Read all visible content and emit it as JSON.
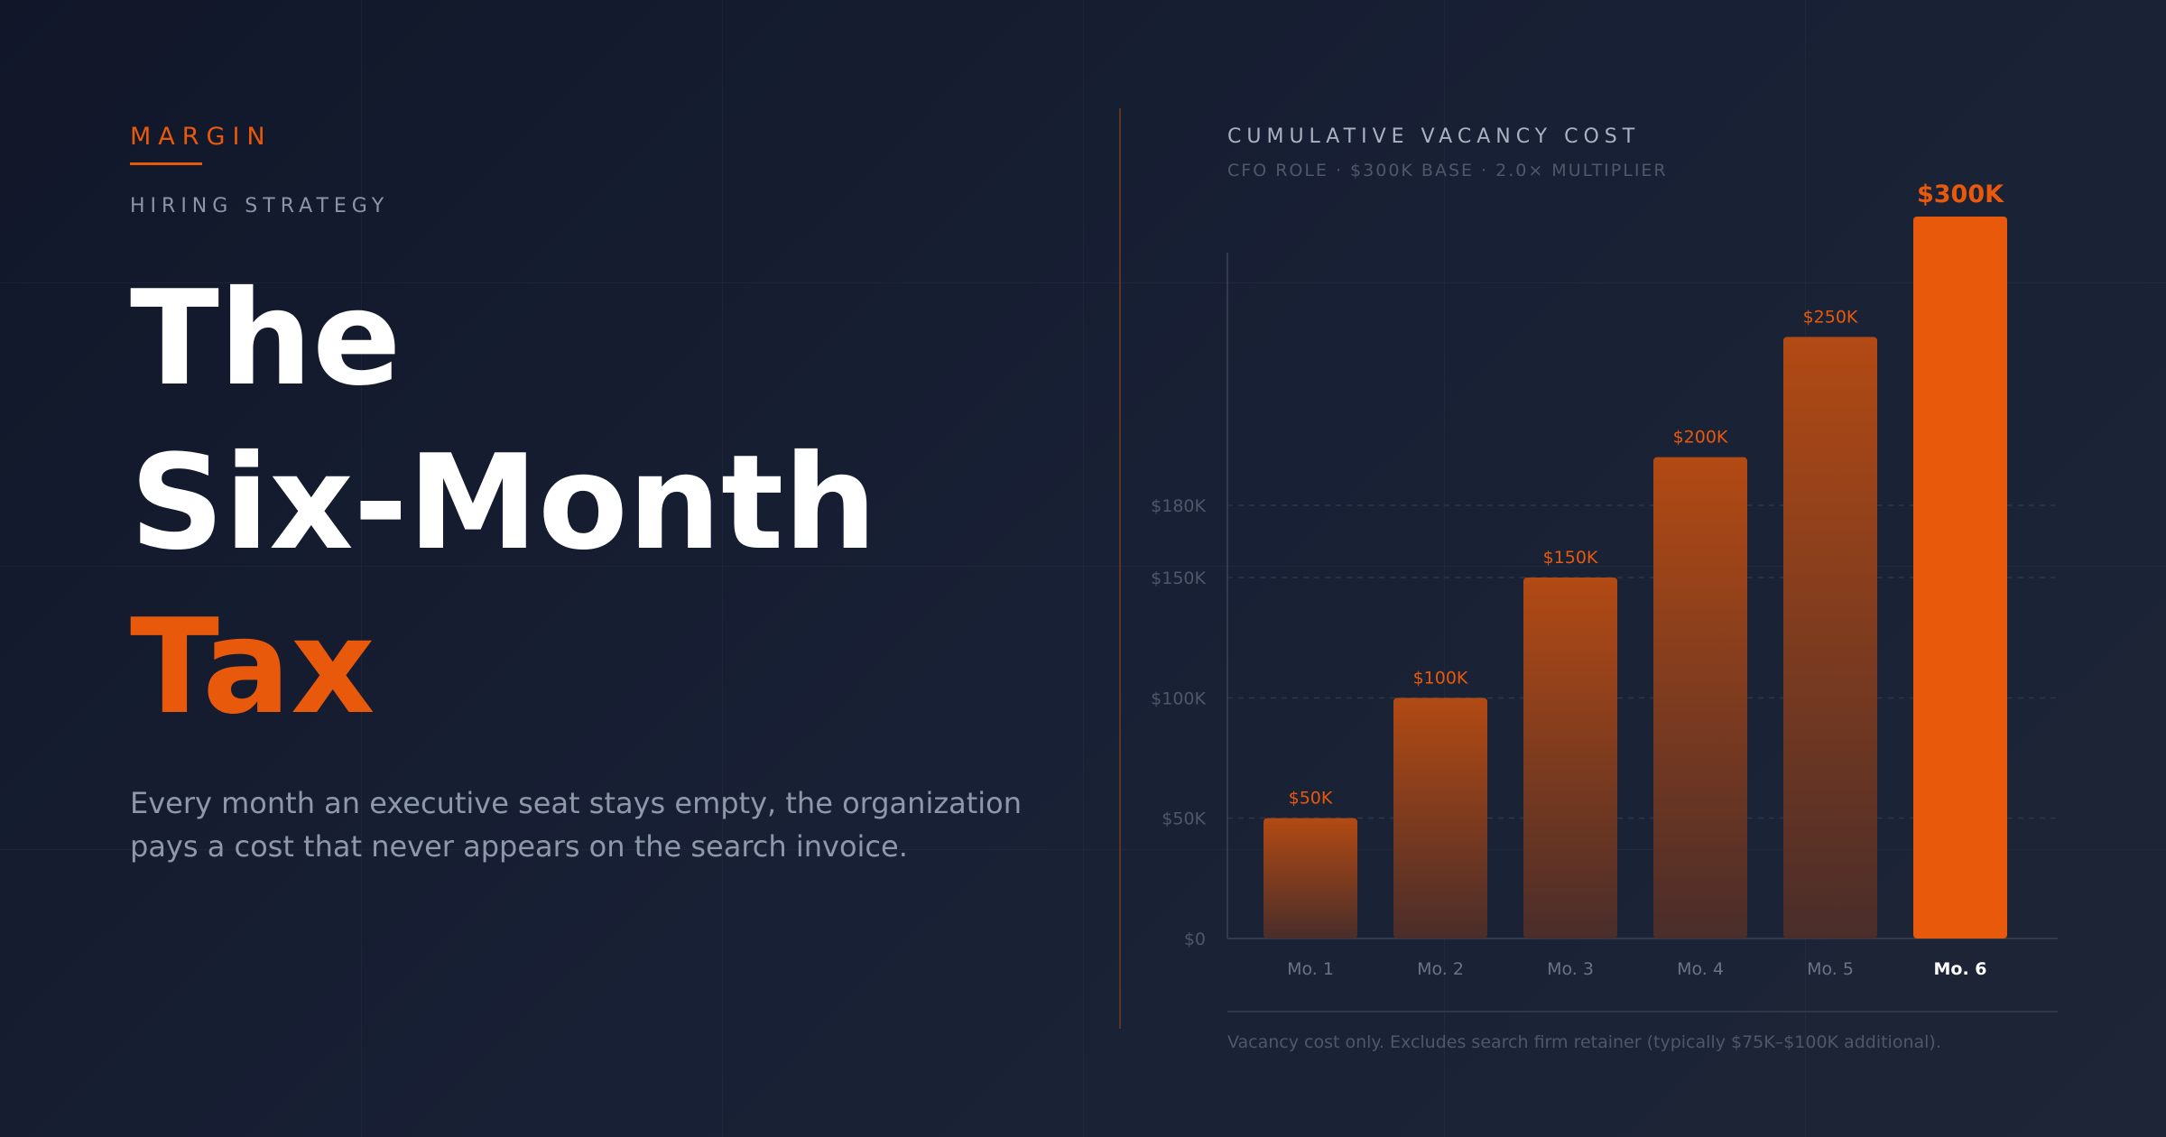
{
  "brand": "MARGIN",
  "eyebrow": "HIRING STRATEGY",
  "title": {
    "line1": "The",
    "line2": "Six-Month",
    "line3": "Tax"
  },
  "lede": "Every month an executive seat stays empty, the organization pays a cost that never appears on the search invoice.",
  "colors": {
    "accent": "#e8590c",
    "bar_dim": "#8a3f19",
    "text_muted": "#8e98ab"
  },
  "chart_data": {
    "type": "bar",
    "title": "CUMULATIVE VACANCY COST",
    "subtitle": "CFO ROLE · $300K BASE · 2.0× MULTIPLIER",
    "categories": [
      "Mo. 1",
      "Mo. 2",
      "Mo. 3",
      "Mo. 4",
      "Mo. 5",
      "Mo. 6"
    ],
    "values": [
      50000,
      100000,
      150000,
      200000,
      250000,
      300000
    ],
    "value_labels": [
      "$50K",
      "$100K",
      "$150K",
      "$200K",
      "$250K",
      "$300K"
    ],
    "highlight_index": 5,
    "y_ticks": [
      {
        "value": 0,
        "label": "$0"
      },
      {
        "value": 50000,
        "label": "$50K"
      },
      {
        "value": 100000,
        "label": "$100K"
      },
      {
        "value": 150000,
        "label": "$150K"
      },
      {
        "value": 180000,
        "label": "$180K"
      }
    ],
    "grid": true
  },
  "footnote": "Vacancy cost only. Excludes search firm retainer (typically $75K–$100K additional)."
}
